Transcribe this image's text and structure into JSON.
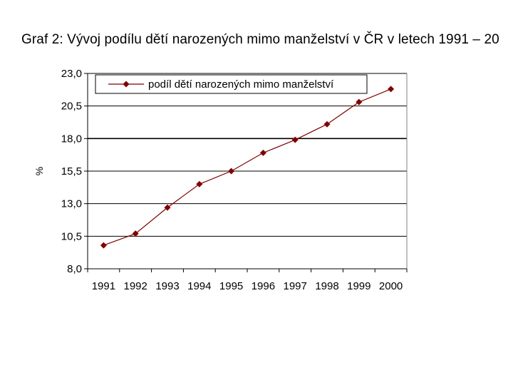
{
  "chart_data": {
    "type": "line",
    "title": "Graf 2: Vývoj podílu dětí narozených mimo manželství v ČR v letech 1991 – 20",
    "xlabel": "",
    "ylabel": "%",
    "categories": [
      "1991",
      "1992",
      "1993",
      "1994",
      "1995",
      "1996",
      "1997",
      "1998",
      "1999",
      "2000"
    ],
    "series": [
      {
        "name": "podíl dětí narozených mimo manželství",
        "values": [
          9.8,
          10.7,
          12.7,
          14.5,
          15.5,
          16.9,
          17.9,
          19.1,
          20.8,
          21.8
        ],
        "color": "#800000",
        "marker": "diamond"
      }
    ],
    "ylim": [
      8.0,
      23.0
    ],
    "yticks": [
      "8,0",
      "10,5",
      "13,0",
      "15,5",
      "18,0",
      "20,5",
      "23,0"
    ],
    "ytick_values": [
      8.0,
      10.5,
      13.0,
      15.5,
      18.0,
      20.5,
      23.0
    ],
    "grid": true,
    "legend_position": "top"
  }
}
